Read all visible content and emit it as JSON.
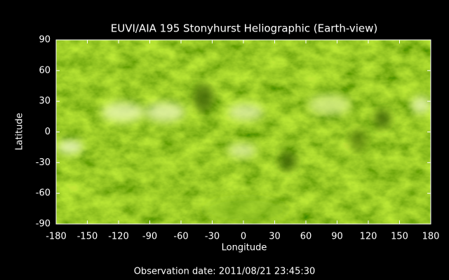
{
  "chart_data": {
    "type": "image",
    "title": "EUVI/AIA 195 Stonyhurst Heliographic (Earth-view)",
    "xlabel": "Longitude",
    "ylabel": "Latitude",
    "annotation": "Observation date: 2011/08/21 23:45:30",
    "xlim": [
      -180,
      180
    ],
    "ylim": [
      -90,
      90
    ],
    "xticks": [
      -180,
      -150,
      -120,
      -90,
      -60,
      -30,
      0,
      30,
      60,
      90,
      120,
      150,
      180
    ],
    "yticks": [
      -90,
      -60,
      -30,
      0,
      30,
      60,
      90
    ]
  }
}
